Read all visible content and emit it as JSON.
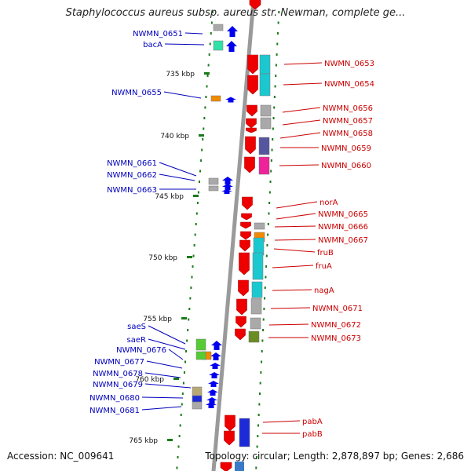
{
  "title": "Staphylococcus aureus subsp. aureus str. Newman, complete ge...",
  "footer": {
    "accession": "Accession: NC_009641",
    "topology": "Topology: circular; Length: 2,878,897 bp; Genes: 2,686"
  },
  "colors": {
    "backbone": "#9a9a9a",
    "forward_arrow": "#0000ee",
    "reverse_arrow": "#ee0000",
    "left_labels": "#0000bb",
    "right_labels": "#cc0000",
    "ticks": "#1a7a1a"
  },
  "scale": {
    "ticks": [
      "735 kbp",
      "740 kbp",
      "745 kbp",
      "750 kbp",
      "755 kbp",
      "760 kbp",
      "765 kbp"
    ]
  },
  "left_genes": [
    {
      "label": "NWMN_0651",
      "feature": "gray",
      "strand": "forward"
    },
    {
      "label": "bacA",
      "feature": "mint",
      "strand": "forward"
    },
    {
      "label": "NWMN_0655",
      "feature": "orange",
      "strand": "forward"
    },
    {
      "label": "NWMN_0661",
      "feature": "gray",
      "strand": "forward"
    },
    {
      "label": "NWMN_0662",
      "feature": "gray",
      "strand": "forward"
    },
    {
      "label": "NWMN_0663",
      "feature": "gray",
      "strand": "forward"
    },
    {
      "label": "saeS",
      "feature": "green",
      "strand": "forward"
    },
    {
      "label": "saeR",
      "feature": "orange",
      "strand": "forward"
    },
    {
      "label": "NWMN_0676",
      "feature": "green",
      "strand": "forward"
    },
    {
      "label": "NWMN_0677",
      "feature": "none",
      "strand": "forward"
    },
    {
      "label": "NWMN_0678",
      "feature": "none",
      "strand": "forward"
    },
    {
      "label": "NWMN_0679",
      "feature": "tan",
      "strand": "forward"
    },
    {
      "label": "NWMN_0680",
      "feature": "blue",
      "strand": "forward"
    },
    {
      "label": "NWMN_0681",
      "feature": "gray",
      "strand": "forward"
    }
  ],
  "right_genes": [
    {
      "label": "NWMN_0653",
      "feature": "cyan",
      "strand": "reverse"
    },
    {
      "label": "NWMN_0654",
      "feature": "cyan",
      "strand": "reverse"
    },
    {
      "label": "NWMN_0656",
      "feature": "gray",
      "strand": "reverse"
    },
    {
      "label": "NWMN_0657",
      "feature": "gray",
      "strand": "reverse"
    },
    {
      "label": "NWMN_0658",
      "feature": "none",
      "strand": "reverse"
    },
    {
      "label": "NWMN_0659",
      "feature": "purple",
      "strand": "reverse"
    },
    {
      "label": "NWMN_0660",
      "feature": "magenta",
      "strand": "reverse"
    },
    {
      "label": "norA",
      "feature": "none",
      "strand": "reverse"
    },
    {
      "label": "NWMN_0665",
      "feature": "none",
      "strand": "reverse"
    },
    {
      "label": "NWMN_0666",
      "feature": "gray",
      "strand": "reverse"
    },
    {
      "label": "NWMN_0667",
      "feature": "orange",
      "strand": "reverse"
    },
    {
      "label": "fruB",
      "feature": "cyan",
      "strand": "reverse"
    },
    {
      "label": "fruA",
      "feature": "cyan",
      "strand": "reverse"
    },
    {
      "label": "nagA",
      "feature": "cyan",
      "strand": "reverse"
    },
    {
      "label": "NWMN_0671",
      "feature": "gray",
      "strand": "reverse"
    },
    {
      "label": "NWMN_0672",
      "feature": "gray",
      "strand": "reverse"
    },
    {
      "label": "NWMN_0673",
      "feature": "olive",
      "strand": "reverse"
    },
    {
      "label": "pabA",
      "feature": "blue",
      "strand": "reverse"
    },
    {
      "label": "pabB",
      "feature": "blue",
      "strand": "reverse"
    }
  ]
}
